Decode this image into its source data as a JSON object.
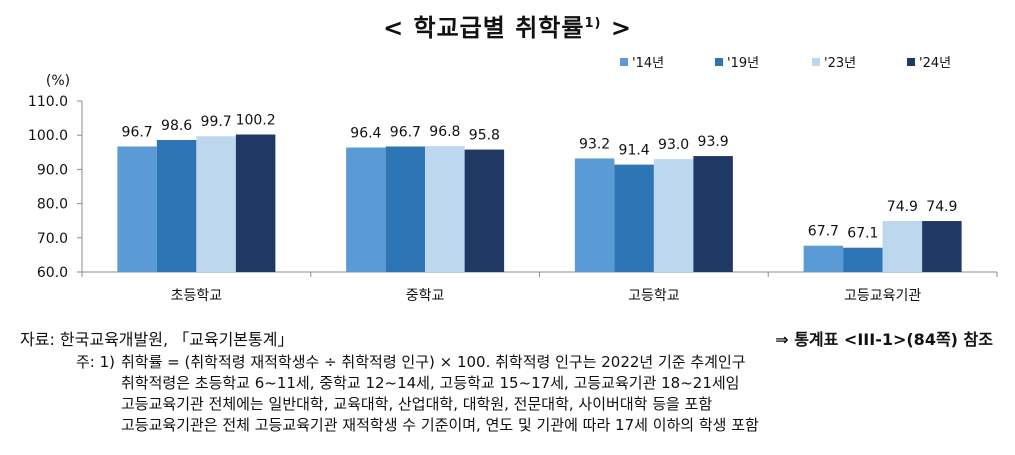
{
  "title": {
    "main": "< 학교급별 취학률",
    "sup": "1)",
    "close": ">"
  },
  "chart_data": {
    "type": "bar",
    "title": "< 학교급별 취학률1) >",
    "unit": "(%)",
    "categories": [
      "초등학교",
      "중학교",
      "고등학교",
      "고등교육기관"
    ],
    "series": [
      {
        "name": "'14년",
        "color": "#5b9bd5",
        "values": [
          96.7,
          96.4,
          93.2,
          67.7
        ]
      },
      {
        "name": "'19년",
        "color": "#2e75b6",
        "values": [
          98.6,
          96.7,
          91.4,
          67.1
        ]
      },
      {
        "name": "'23년",
        "color": "#bdd7ee",
        "values": [
          99.7,
          96.8,
          93.0,
          74.9
        ]
      },
      {
        "name": "'24년",
        "color": "#203864",
        "values": [
          100.2,
          95.8,
          93.9,
          74.9
        ]
      }
    ],
    "value_labels": [
      [
        "96.7",
        "96.4",
        "93.2",
        "67.7"
      ],
      [
        "98.6",
        "96.7",
        "91.4",
        "67.1"
      ],
      [
        "99.7",
        "96.8",
        "93.0",
        "74.9"
      ],
      [
        "100.2",
        "95.8",
        "93.9",
        "74.9"
      ]
    ],
    "ylim": [
      60,
      110
    ],
    "yticks": [
      "60.0",
      "70.0",
      "80.0",
      "90.0",
      "100.0",
      "110.0"
    ],
    "legend_position": "top-right",
    "grid": false
  },
  "source": "자료: 한국교육개발원, 「교육기본통계」",
  "source_ref": "⇒ 통계표 <III-1>(84쪽) 참조",
  "notes": [
    {
      "head": "주: 1)",
      "text": "취학률 = (취학적령 재적학생수 ÷ 취학적령 인구) × 100. 취학적령 인구는 2022년 기준 추계인구"
    },
    {
      "head": "",
      "text": "취학적령은 초등학교 6~11세, 중학교 12~14세, 고등학교 15~17세, 고등교육기관 18~21세임"
    },
    {
      "head": "",
      "text": "고등교육기관 전체에는 일반대학, 교육대학, 산업대학, 대학원, 전문대학, 사이버대학 등을 포함"
    },
    {
      "head": "",
      "text": "고등교육기관은 전체 고등교육기관 재적학생 수 기준이며, 연도 및 기관에 따라 17세 이하의 학생 포함"
    }
  ]
}
